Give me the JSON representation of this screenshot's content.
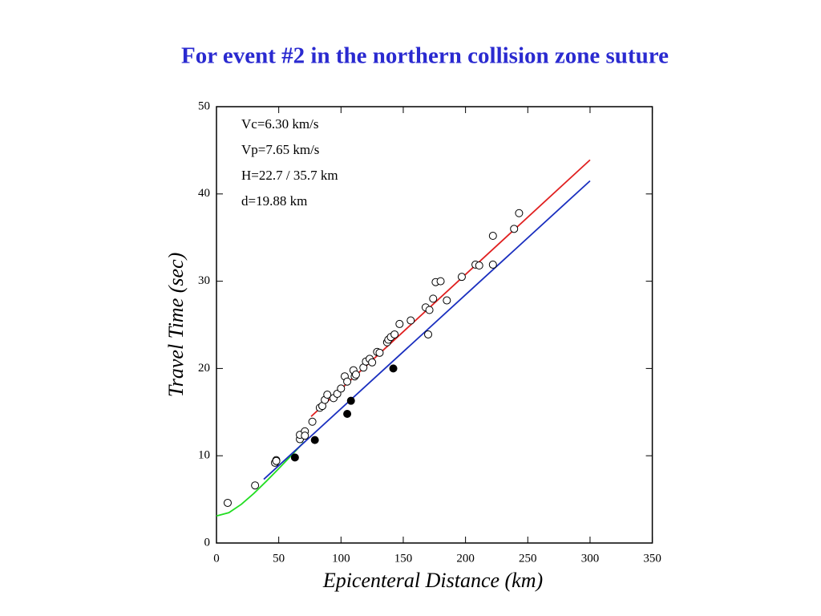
{
  "chart_data": {
    "type": "scatter",
    "title": "For event #2 in the northern collision zone suture",
    "x_label": "Epicenteral Distance (km)",
    "y_label": "Travel Time (sec)",
    "annotations": [
      "Vc=6.30 km/s",
      "Vp=7.65 km/s",
      "H=22.7 / 35.7 km",
      "d=19.88 km"
    ],
    "xlim": [
      0,
      350
    ],
    "ylim": [
      0,
      50
    ],
    "xticks": [
      0,
      50,
      100,
      150,
      200,
      250,
      300,
      350
    ],
    "yticks": [
      0,
      10,
      20,
      30,
      40,
      50
    ],
    "series": [
      {
        "mode": "line",
        "color": "#22dd22",
        "x": [
          0,
          10,
          20,
          30,
          40,
          50,
          60,
          70
        ],
        "values": [
          3.1,
          3.48,
          4.44,
          5.68,
          7.07,
          8.52,
          10.02,
          11.53
        ]
      },
      {
        "mode": "line",
        "color": "#e02020",
        "x": [
          76,
          300
        ],
        "values": [
          14.5,
          43.9
        ]
      },
      {
        "mode": "line",
        "color": "#1a2fbf",
        "x": [
          38,
          300
        ],
        "values": [
          7.3,
          41.5
        ]
      },
      {
        "mode": "marker",
        "marker": "open",
        "color": "#000000",
        "x": [
          9,
          31,
          47,
          48,
          48,
          67,
          67,
          71,
          71,
          77,
          83,
          85,
          87,
          89,
          94,
          97,
          100,
          103,
          105,
          110,
          111,
          112,
          118,
          120,
          123,
          125,
          129,
          131,
          137,
          138,
          140,
          143,
          147,
          156,
          168,
          170,
          171,
          174,
          176,
          180,
          185,
          197,
          208,
          211,
          222,
          222,
          239,
          243
        ],
        "values": [
          4.6,
          6.6,
          9.2,
          9.5,
          9.4,
          11.9,
          12.4,
          12.8,
          12.3,
          13.9,
          15.5,
          15.7,
          16.4,
          17.0,
          16.6,
          17.1,
          17.7,
          19.1,
          18.5,
          19.8,
          19.1,
          19.3,
          20.1,
          20.8,
          21.1,
          20.7,
          21.9,
          21.8,
          23.0,
          23.3,
          23.6,
          23.9,
          25.1,
          25.5,
          27.0,
          23.9,
          26.7,
          28.0,
          29.9,
          30.0,
          27.8,
          30.5,
          31.9,
          31.8,
          31.9,
          35.2,
          36.0,
          37.8
        ]
      },
      {
        "mode": "marker",
        "marker": "filled",
        "color": "#000000",
        "x": [
          63,
          79,
          105,
          108,
          142
        ],
        "values": [
          9.8,
          11.8,
          14.8,
          16.3,
          20.0
        ]
      }
    ]
  }
}
